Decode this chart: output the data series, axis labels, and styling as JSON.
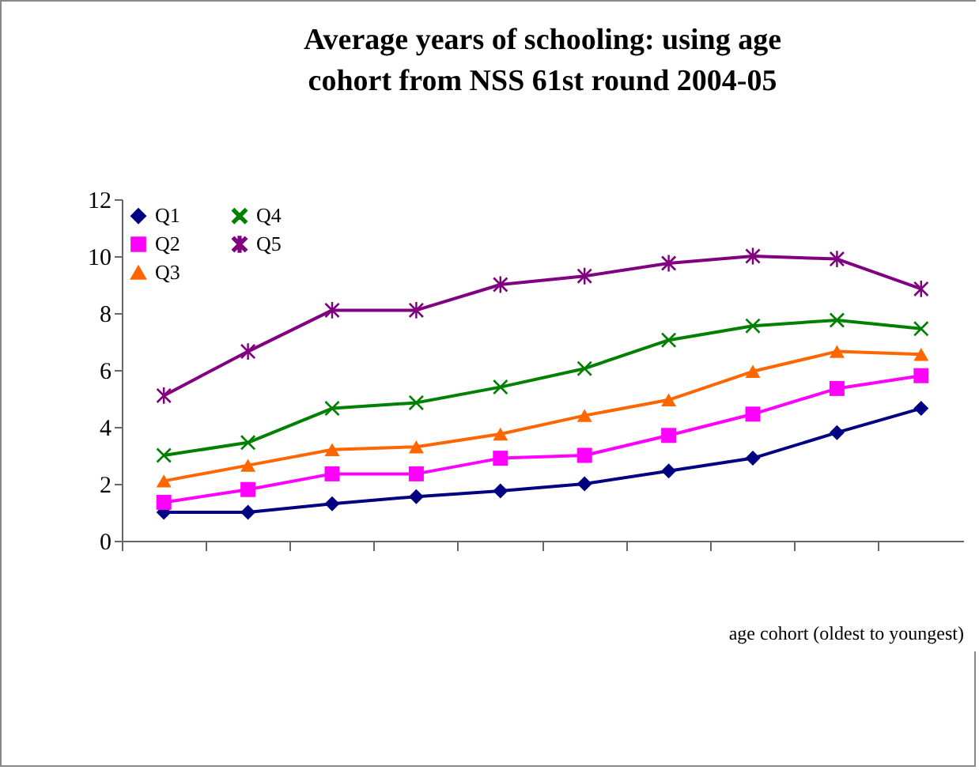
{
  "chart_data": {
    "type": "line",
    "title": "Average years of schooling: using age cohort from NSS 61st round 2004-05",
    "xlabel": "age cohort (oldest to youngest)",
    "categories": [
      null,
      null,
      null,
      null,
      null,
      null,
      null,
      null,
      null,
      null
    ],
    "ylim": [
      0,
      12
    ],
    "yticks": [
      0,
      2,
      4,
      6,
      8,
      10,
      12
    ],
    "grid": false,
    "legend": "top left",
    "series": [
      {
        "name": "Q1",
        "color": "#000080",
        "marker": "diamond",
        "values": [
          1.0,
          1.0,
          1.3,
          1.55,
          1.75,
          2.0,
          2.45,
          2.9,
          3.8,
          4.65
        ]
      },
      {
        "name": "Q2",
        "color": "#ff00ff",
        "marker": "square",
        "values": [
          1.35,
          1.8,
          2.35,
          2.35,
          2.9,
          3.0,
          3.7,
          4.45,
          5.35,
          5.8
        ]
      },
      {
        "name": "Q3",
        "color": "#ff6600",
        "marker": "triangle",
        "values": [
          2.1,
          2.65,
          3.2,
          3.3,
          3.75,
          4.4,
          4.95,
          5.95,
          6.65,
          6.55
        ]
      },
      {
        "name": "Q4",
        "color": "#008000",
        "marker": "cross",
        "values": [
          3.0,
          3.45,
          4.65,
          4.85,
          5.4,
          6.05,
          7.05,
          7.55,
          7.75,
          7.45
        ]
      },
      {
        "name": "Q5",
        "color": "#800080",
        "marker": "star",
        "values": [
          5.1,
          6.65,
          8.1,
          8.1,
          9.0,
          9.3,
          9.75,
          10.0,
          9.9,
          8.85
        ]
      }
    ]
  }
}
